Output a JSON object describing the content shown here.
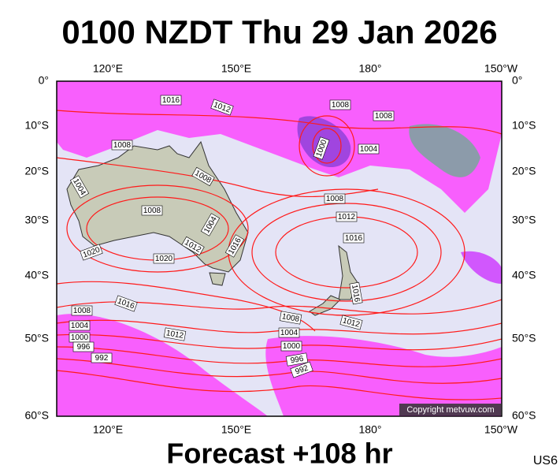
{
  "title": "0100 NZDT Thu 29 Jan 2026",
  "footer": "Forecast +108 hr",
  "code": "US6",
  "copyright": "Copyright metvuw.com",
  "lon_labels": [
    "120°E",
    "150°E",
    "180°",
    "150°W"
  ],
  "lat_labels": [
    "0°",
    "10°S",
    "20°S",
    "30°S",
    "40°S",
    "50°S",
    "60°S"
  ],
  "isobar_labels": [
    "1016",
    "1012",
    "1008",
    "1008",
    "1008",
    "1000",
    "1004",
    "1004",
    "1008",
    "1008",
    "1008",
    "1012",
    "1004",
    "1016",
    "1012",
    "1016",
    "1020",
    "1020",
    "1016",
    "1016",
    "1008",
    "1008",
    "1012",
    "1004",
    "1012",
    "1004",
    "1000",
    "1000",
    "996",
    "992",
    "996",
    "992"
  ]
}
